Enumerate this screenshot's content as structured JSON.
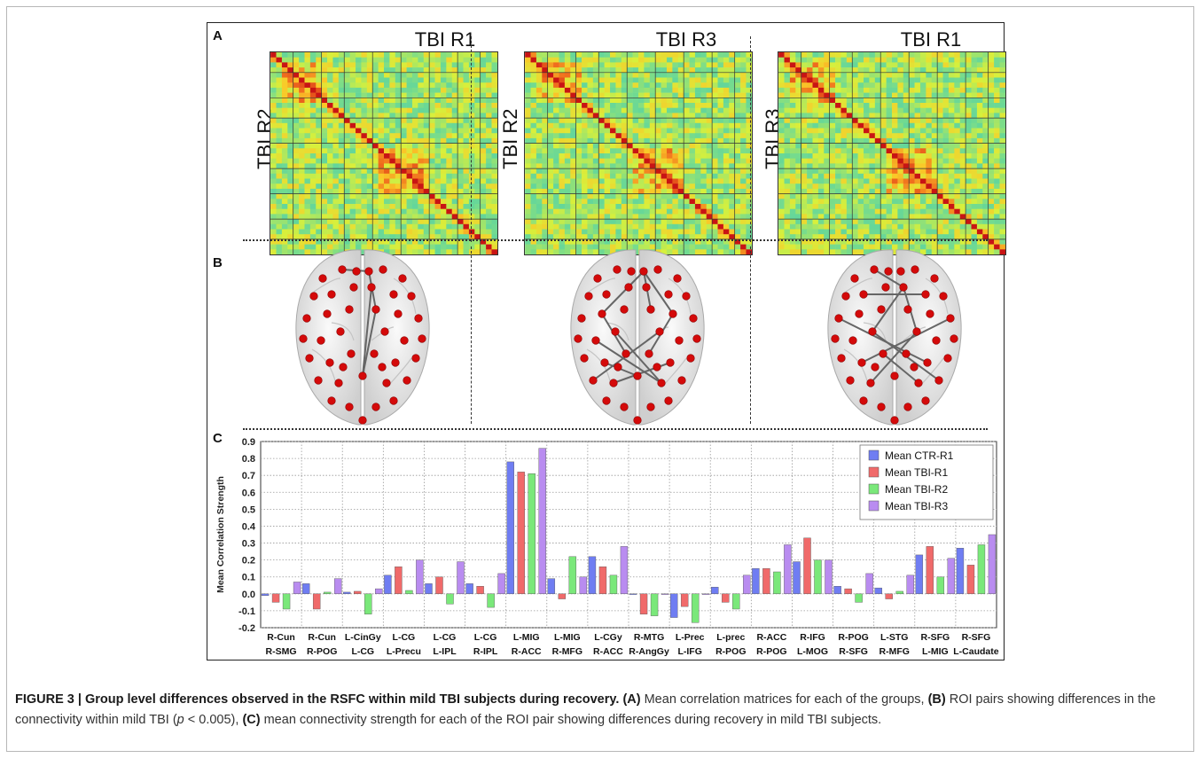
{
  "figure": {
    "panels": {
      "a": {
        "letter": "A",
        "matrices": [
          {
            "title": "TBI R1",
            "ylabel": "TBI R2"
          },
          {
            "title": "TBI R3",
            "ylabel": "TBI R2"
          },
          {
            "title": "TBI R1",
            "ylabel": "TBI R3"
          }
        ]
      },
      "b": {
        "letter": "B"
      },
      "c": {
        "letter": "C"
      }
    },
    "colors": {
      "matrix_low": "#2fc6c0",
      "matrix_mid": "#d9f03a",
      "matrix_high": "#c81818",
      "node": "#d40a0a",
      "brain": "#e6e6e6"
    },
    "icons": [
      "correlation-matrix-heatmap",
      "brain-connectivity-render"
    ]
  },
  "chart_data": {
    "type": "bar",
    "ylabel": "Mean Correlation Strength",
    "xlabel": "",
    "ylim": [
      -0.2,
      0.9
    ],
    "yticks": [
      -0.2,
      -0.1,
      0.0,
      0.1,
      0.2,
      0.3,
      0.4,
      0.5,
      0.6,
      0.7,
      0.8,
      0.9
    ],
    "grid": true,
    "legend_position": "top-right",
    "categories": [
      [
        "R-Cun",
        "R-SMG"
      ],
      [
        "R-Cun",
        "R-POG"
      ],
      [
        "L-CinGy",
        "L-CG"
      ],
      [
        "L-CG",
        "L-Precu"
      ],
      [
        "L-CG",
        "L-IPL"
      ],
      [
        "L-CG",
        "R-IPL"
      ],
      [
        "L-MIG",
        "R-ACC"
      ],
      [
        "L-MIG",
        "R-MFG"
      ],
      [
        "L-CGy",
        "R-ACC"
      ],
      [
        "R-MTG",
        "R-AngGy"
      ],
      [
        "L-Prec",
        "L-IFG"
      ],
      [
        "L-prec",
        "R-POG"
      ],
      [
        "R-ACC",
        "R-POG"
      ],
      [
        "R-IFG",
        "L-MOG"
      ],
      [
        "R-POG",
        "R-SFG"
      ],
      [
        "L-STG",
        "R-MFG"
      ],
      [
        "R-SFG",
        "L-MIG"
      ],
      [
        "R-SFG",
        "L-Caudate"
      ]
    ],
    "series": [
      {
        "name": "Mean CTR-R1",
        "color": "#6f7df2",
        "values": [
          -0.01,
          0.06,
          0.01,
          0.11,
          0.06,
          0.06,
          0.78,
          0.09,
          0.22,
          0.0,
          -0.14,
          0.04,
          0.15,
          0.19,
          0.045,
          0.035,
          0.23,
          0.27
        ]
      },
      {
        "name": "Mean TBI-R1",
        "color": "#f06a6a",
        "values": [
          -0.05,
          -0.09,
          0.015,
          0.16,
          0.1,
          0.045,
          0.72,
          -0.03,
          0.16,
          -0.12,
          -0.075,
          -0.05,
          0.15,
          0.33,
          0.03,
          -0.03,
          0.28,
          0.17
        ]
      },
      {
        "name": "Mean TBI-R2",
        "color": "#7ae87a",
        "values": [
          -0.09,
          0.01,
          -0.12,
          0.02,
          -0.06,
          -0.08,
          0.71,
          0.22,
          0.11,
          -0.13,
          -0.17,
          -0.09,
          0.13,
          0.2,
          -0.05,
          0.015,
          0.1,
          0.29
        ]
      },
      {
        "name": "Mean TBI-R3",
        "color": "#b98cf0",
        "values": [
          0.07,
          0.09,
          0.03,
          0.2,
          0.19,
          0.12,
          0.86,
          0.1,
          0.28,
          0.0,
          0.0,
          0.11,
          0.29,
          0.2,
          0.12,
          0.11,
          0.21,
          0.35
        ]
      }
    ]
  },
  "caption": {
    "label": "FIGURE 3 | Group level differences observed in the RSFC within mild TBI subjects during recovery.",
    "part_a_label": "(A)",
    "part_a_text": " Mean correlation matrices for each of the groups, ",
    "part_b_label": "(B)",
    "part_b_text": " ROI pairs showing differences in the connectivity within mild TBI (",
    "p_symbol": "p",
    "p_text": " < 0.005), ",
    "part_c_label": "(C)",
    "part_c_text": " mean connectivity strength for each of the ROI pair showing differences during recovery in mild TBI subjects."
  }
}
